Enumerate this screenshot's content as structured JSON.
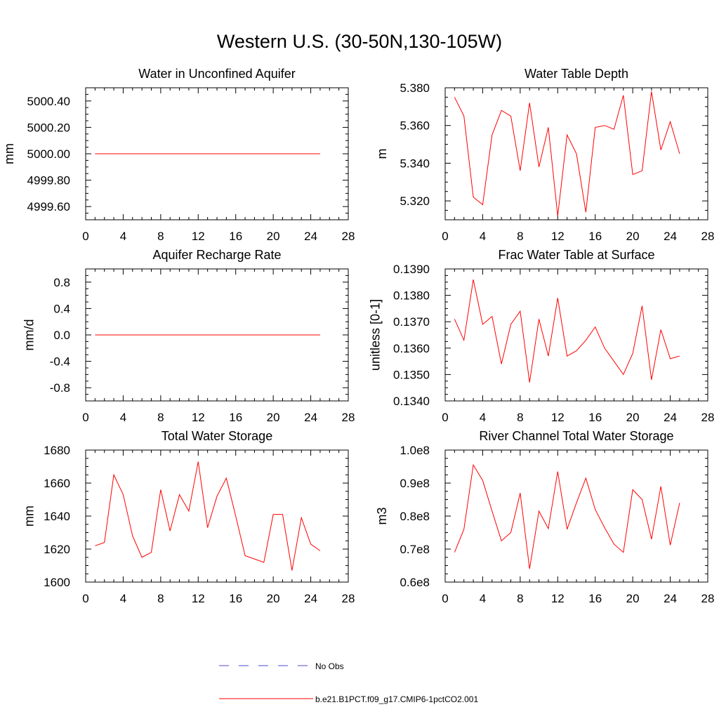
{
  "page": {
    "title": "Western U.S. (30-50N,130-105W)"
  },
  "legend": [
    {
      "label": "No Obs",
      "color": "#4a4ad8",
      "style": "dashed"
    },
    {
      "label": "b.e21.B1PCT.f09_g17.CMIP6-1pctCO2.001",
      "color": "#ff0000",
      "style": "solid"
    }
  ],
  "chart_data": [
    {
      "type": "line",
      "title": "Water in Unconfined Aquifer",
      "ylabel": "mm",
      "xlim": [
        0,
        28
      ],
      "ylim": [
        4999.5,
        5000.5
      ],
      "xticks": [
        0,
        4,
        8,
        12,
        16,
        20,
        24,
        28
      ],
      "xtick_labels": [
        "0",
        "4",
        "8",
        "12",
        "16",
        "20",
        "24",
        "28"
      ],
      "yticks": [
        4999.6,
        4999.8,
        5000.0,
        5000.2,
        5000.4
      ],
      "ytick_labels": [
        "4999.60",
        "4999.80",
        "5000.00",
        "5000.20",
        "5000.40"
      ],
      "x": [
        1,
        2,
        3,
        4,
        5,
        6,
        7,
        8,
        9,
        10,
        11,
        12,
        13,
        14,
        15,
        16,
        17,
        18,
        19,
        20,
        21,
        22,
        23,
        24,
        25
      ],
      "series": [
        {
          "values": [
            5000,
            5000,
            5000,
            5000,
            5000,
            5000,
            5000,
            5000,
            5000,
            5000,
            5000,
            5000,
            5000,
            5000,
            5000,
            5000,
            5000,
            5000,
            5000,
            5000,
            5000,
            5000,
            5000,
            5000,
            5000
          ],
          "color": "#ff0000"
        }
      ]
    },
    {
      "type": "line",
      "title": "Water Table Depth",
      "ylabel": "m",
      "xlim": [
        0,
        28
      ],
      "ylim": [
        5.31,
        5.38
      ],
      "xticks": [
        0,
        4,
        8,
        12,
        16,
        20,
        24,
        28
      ],
      "xtick_labels": [
        "0",
        "4",
        "8",
        "12",
        "16",
        "20",
        "24",
        "28"
      ],
      "yticks": [
        5.32,
        5.34,
        5.36,
        5.38
      ],
      "ytick_labels": [
        "5.320",
        "5.340",
        "5.360",
        "5.380"
      ],
      "x": [
        1,
        2,
        3,
        4,
        5,
        6,
        7,
        8,
        9,
        10,
        11,
        12,
        13,
        14,
        15,
        16,
        17,
        18,
        19,
        20,
        21,
        22,
        23,
        24,
        25
      ],
      "series": [
        {
          "values": [
            5.375,
            5.365,
            5.322,
            5.318,
            5.355,
            5.368,
            5.365,
            5.336,
            5.372,
            5.338,
            5.359,
            5.312,
            5.355,
            5.345,
            5.314,
            5.359,
            5.36,
            5.358,
            5.376,
            5.334,
            5.336,
            5.378,
            5.347,
            5.362,
            5.345
          ],
          "color": "#ff0000"
        }
      ]
    },
    {
      "type": "line",
      "title": "Aquifer Recharge Rate",
      "ylabel": "mm/d",
      "xlim": [
        0,
        28
      ],
      "ylim": [
        -1.0,
        1.0
      ],
      "xticks": [
        0,
        4,
        8,
        12,
        16,
        20,
        24,
        28
      ],
      "xtick_labels": [
        "0",
        "4",
        "8",
        "12",
        "16",
        "20",
        "24",
        "28"
      ],
      "yticks": [
        -0.8,
        -0.4,
        0.0,
        0.4,
        0.8
      ],
      "ytick_labels": [
        "-0.8",
        "-0.4",
        "0.0",
        "0.4",
        "0.8"
      ],
      "x": [
        1,
        2,
        3,
        4,
        5,
        6,
        7,
        8,
        9,
        10,
        11,
        12,
        13,
        14,
        15,
        16,
        17,
        18,
        19,
        20,
        21,
        22,
        23,
        24,
        25
      ],
      "series": [
        {
          "values": [
            0,
            0,
            0,
            0,
            0,
            0,
            0,
            0,
            0,
            0,
            0,
            0,
            0,
            0,
            0,
            0,
            0,
            0,
            0,
            0,
            0,
            0,
            0,
            0,
            0
          ],
          "color": "#ff0000"
        }
      ]
    },
    {
      "type": "line",
      "title": "Frac Water Table at Surface",
      "ylabel": "unitless [0-1]",
      "xlim": [
        0,
        28
      ],
      "ylim": [
        0.134,
        0.139
      ],
      "xticks": [
        0,
        4,
        8,
        12,
        16,
        20,
        24,
        28
      ],
      "xtick_labels": [
        "0",
        "4",
        "8",
        "12",
        "16",
        "20",
        "24",
        "28"
      ],
      "yticks": [
        0.134,
        0.135,
        0.136,
        0.137,
        0.138,
        0.139
      ],
      "ytick_labels": [
        "0.1340",
        "0.1350",
        "0.1360",
        "0.1370",
        "0.1380",
        "0.1390"
      ],
      "x": [
        1,
        2,
        3,
        4,
        5,
        6,
        7,
        8,
        9,
        10,
        11,
        12,
        13,
        14,
        15,
        16,
        17,
        18,
        19,
        20,
        21,
        22,
        23,
        24,
        25
      ],
      "series": [
        {
          "values": [
            0.1371,
            0.1363,
            0.1386,
            0.1369,
            0.1372,
            0.1354,
            0.1369,
            0.1374,
            0.1347,
            0.1371,
            0.1357,
            0.1379,
            0.1357,
            0.1359,
            0.1363,
            0.1368,
            0.136,
            0.1355,
            0.135,
            0.1358,
            0.1376,
            0.1348,
            0.1367,
            0.1356,
            0.1357
          ],
          "color": "#ff0000"
        }
      ]
    },
    {
      "type": "line",
      "title": "Total Water Storage",
      "ylabel": "mm",
      "xlim": [
        0,
        28
      ],
      "ylim": [
        1600,
        1680
      ],
      "xticks": [
        0,
        4,
        8,
        12,
        16,
        20,
        24,
        28
      ],
      "xtick_labels": [
        "0",
        "4",
        "8",
        "12",
        "16",
        "20",
        "24",
        "28"
      ],
      "yticks": [
        1600,
        1620,
        1640,
        1660,
        1680
      ],
      "ytick_labels": [
        "1600",
        "1620",
        "1640",
        "1660",
        "1680"
      ],
      "x": [
        1,
        2,
        3,
        4,
        5,
        6,
        7,
        8,
        9,
        10,
        11,
        12,
        13,
        14,
        15,
        16,
        17,
        18,
        19,
        20,
        21,
        22,
        23,
        24,
        25
      ],
      "series": [
        {
          "values": [
            1622,
            1624,
            1665,
            1653,
            1628,
            1615,
            1618,
            1656,
            1631,
            1653,
            1643,
            1673,
            1633,
            1652,
            1663,
            1640,
            1616,
            1614,
            1612,
            1641,
            1641,
            1607,
            1639,
            1623,
            1619
          ],
          "color": "#ff0000"
        }
      ]
    },
    {
      "type": "line",
      "title": "River Channel Total Water Storage",
      "ylabel": "m3",
      "xlim": [
        0,
        28
      ],
      "ylim": [
        60000000,
        100000000
      ],
      "xticks": [
        0,
        4,
        8,
        12,
        16,
        20,
        24,
        28
      ],
      "xtick_labels": [
        "0",
        "4",
        "8",
        "12",
        "16",
        "20",
        "24",
        "28"
      ],
      "yticks": [
        60000000,
        70000000,
        80000000,
        90000000,
        100000000
      ],
      "ytick_labels": [
        "0.6e8",
        "0.7e8",
        "0.8e8",
        "0.9e8",
        "1.0e8"
      ],
      "x": [
        1,
        2,
        3,
        4,
        5,
        6,
        7,
        8,
        9,
        10,
        11,
        12,
        13,
        14,
        15,
        16,
        17,
        18,
        19,
        20,
        21,
        22,
        23,
        24,
        25
      ],
      "series": [
        {
          "values": [
            69000000,
            76000000,
            95500000,
            90800000,
            81500000,
            72500000,
            75000000,
            87000000,
            64000000,
            81500000,
            76200000,
            93500000,
            76000000,
            84000000,
            91500000,
            82000000,
            76500000,
            71500000,
            69000000,
            88000000,
            85000000,
            73000000,
            89000000,
            71200000,
            84000000
          ],
          "color": "#ff0000"
        }
      ]
    }
  ]
}
